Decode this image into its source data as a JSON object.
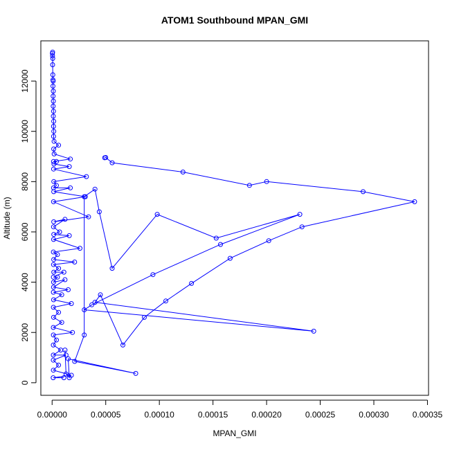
{
  "chart_data": {
    "type": "line",
    "title": "ATOM1 Southbound MPAN_GMI",
    "xlabel": "MPAN_GMI",
    "ylabel": "Altitude (m)",
    "xlim": [
      -1.05e-05,
      0.000351
    ],
    "ylim": [
      -500,
      13600
    ],
    "x_ticks": [
      0,
      5e-05,
      0.0001,
      0.00015,
      0.0002,
      0.00025,
      0.0003,
      0.00035
    ],
    "x_tick_labels": [
      "0.00000",
      "0.00005",
      "0.00010",
      "0.00015",
      "0.00020",
      "0.00025",
      "0.00030",
      "0.00035"
    ],
    "y_ticks": [
      0,
      2000,
      4000,
      6000,
      8000,
      10000,
      12000
    ],
    "y_tick_labels": [
      "0",
      "2000",
      "4000",
      "6000",
      "8000",
      "10000",
      "12000"
    ],
    "grid": false,
    "color": "#0000ff",
    "series": [
      {
        "points": [
          [
            5e-07,
            13150
          ],
          [
            3e-07,
            13100
          ],
          [
            4e-07,
            13000
          ],
          [
            6e-07,
            12900
          ],
          [
            5e-07,
            12650
          ],
          [
            7e-07,
            12250
          ],
          [
            8e-07,
            12050
          ],
          [
            1e-06,
            12000
          ],
          [
            8e-07,
            11800
          ],
          [
            1.1e-06,
            11600
          ],
          [
            9e-07,
            11400
          ],
          [
            1.2e-06,
            11200
          ],
          [
            1e-06,
            11000
          ],
          [
            1.3e-06,
            10800
          ],
          [
            1.1e-06,
            10600
          ],
          [
            1.5e-06,
            10400
          ],
          [
            1.3e-06,
            10200
          ],
          [
            1.6e-06,
            10000
          ],
          [
            1.4e-06,
            9800
          ],
          [
            1.8e-06,
            9600
          ],
          [
            6e-06,
            9450
          ],
          [
            1.5e-06,
            9300
          ],
          [
            1.9e-06,
            9100
          ],
          [
            1.7e-05,
            8900
          ],
          [
            1.3e-06,
            8800
          ],
          [
            4e-06,
            8800
          ],
          [
            1.7e-06,
            8700
          ],
          [
            1.6e-05,
            8600
          ],
          [
            1.4e-06,
            8500
          ],
          [
            3.2e-05,
            8200
          ],
          [
            1.6e-06,
            8000
          ],
          [
            4e-06,
            7850
          ],
          [
            1.3e-06,
            7750
          ],
          [
            1.7e-05,
            7750
          ],
          [
            1.5e-06,
            7600
          ],
          [
            3.1e-05,
            7400
          ],
          [
            1.3e-06,
            7200
          ],
          [
            3.4e-05,
            6600
          ],
          [
            1.5e-06,
            6400
          ],
          [
            1.2e-05,
            6500
          ],
          [
            1.3e-06,
            6200
          ],
          [
            7e-06,
            6000
          ],
          [
            1.6e-06,
            5900
          ],
          [
            1.6e-05,
            5850
          ],
          [
            1.4e-06,
            5700
          ],
          [
            2.6e-05,
            5350
          ],
          [
            1.2e-06,
            5200
          ],
          [
            5e-06,
            5100
          ],
          [
            1.5e-06,
            4900
          ],
          [
            2.1e-05,
            4800
          ],
          [
            1.3e-06,
            4700
          ],
          [
            6e-06,
            4550
          ],
          [
            1.6e-06,
            4400
          ],
          [
            1.1e-05,
            4400
          ],
          [
            1.2e-06,
            4200
          ],
          [
            5e-06,
            4200
          ],
          [
            1.4e-06,
            4000
          ],
          [
            1.2e-05,
            4100
          ],
          [
            1.3e-06,
            3800
          ],
          [
            1.5e-05,
            3700
          ],
          [
            1.2e-06,
            3600
          ],
          [
            9e-06,
            3500
          ],
          [
            1.4e-06,
            3300
          ],
          [
            1.8e-05,
            3150
          ],
          [
            1.2e-06,
            3000
          ],
          [
            6e-06,
            2800
          ],
          [
            1.4e-06,
            2600
          ],
          [
            9e-06,
            2400
          ],
          [
            1.1e-06,
            2200
          ],
          [
            1.9e-05,
            2000
          ],
          [
            1.2e-06,
            1900
          ],
          [
            4e-06,
            1700
          ],
          [
            1.1e-06,
            1500
          ],
          [
            8e-06,
            1300
          ],
          [
            1.1e-06,
            1100
          ],
          [
            1.3e-05,
            1100
          ],
          [
            1.1e-06,
            900
          ],
          [
            6e-06,
            700
          ],
          [
            1.2e-06,
            500
          ],
          [
            1.8e-05,
            300
          ],
          [
            1e-06,
            200
          ],
          [
            1.1e-05,
            200
          ]
        ]
      },
      {
        "points": [
          [
            4.9e-05,
            8950
          ],
          [
            5e-05,
            8960
          ],
          [
            5.6e-05,
            8750
          ],
          [
            0.000122,
            8380
          ],
          [
            0.000184,
            7850
          ],
          [
            0.0002,
            8000
          ],
          [
            0.00029,
            7600
          ],
          [
            0.000338,
            7200
          ],
          [
            0.000233,
            6200
          ],
          [
            0.000202,
            5650
          ],
          [
            0.000166,
            4950
          ],
          [
            0.00013,
            3950
          ],
          [
            0.000106,
            3250
          ],
          [
            8.6e-05,
            2600
          ],
          [
            6.6e-05,
            1500
          ],
          [
            4.5e-05,
            3500
          ],
          [
            4e-05,
            3200
          ],
          [
            0.000244,
            2050
          ],
          [
            3e-05,
            2900
          ],
          [
            3.7e-05,
            3100
          ],
          [
            9.4e-05,
            4300
          ],
          [
            0.000157,
            5500
          ],
          [
            0.000231,
            6700
          ],
          [
            0.000153,
            5750
          ],
          [
            9.8e-05,
            6700
          ],
          [
            5.6e-05,
            4550
          ],
          [
            4.4e-05,
            6800
          ],
          [
            4e-05,
            7700
          ],
          [
            3e-05,
            7400
          ],
          [
            3e-05,
            1900
          ],
          [
            2.1e-05,
            850
          ],
          [
            7.8e-05,
            370
          ],
          [
            1.5e-05,
            950
          ],
          [
            1.6e-05,
            200
          ],
          [
            1.3e-05,
            350
          ],
          [
            1.2e-05,
            1300
          ]
        ]
      }
    ]
  }
}
